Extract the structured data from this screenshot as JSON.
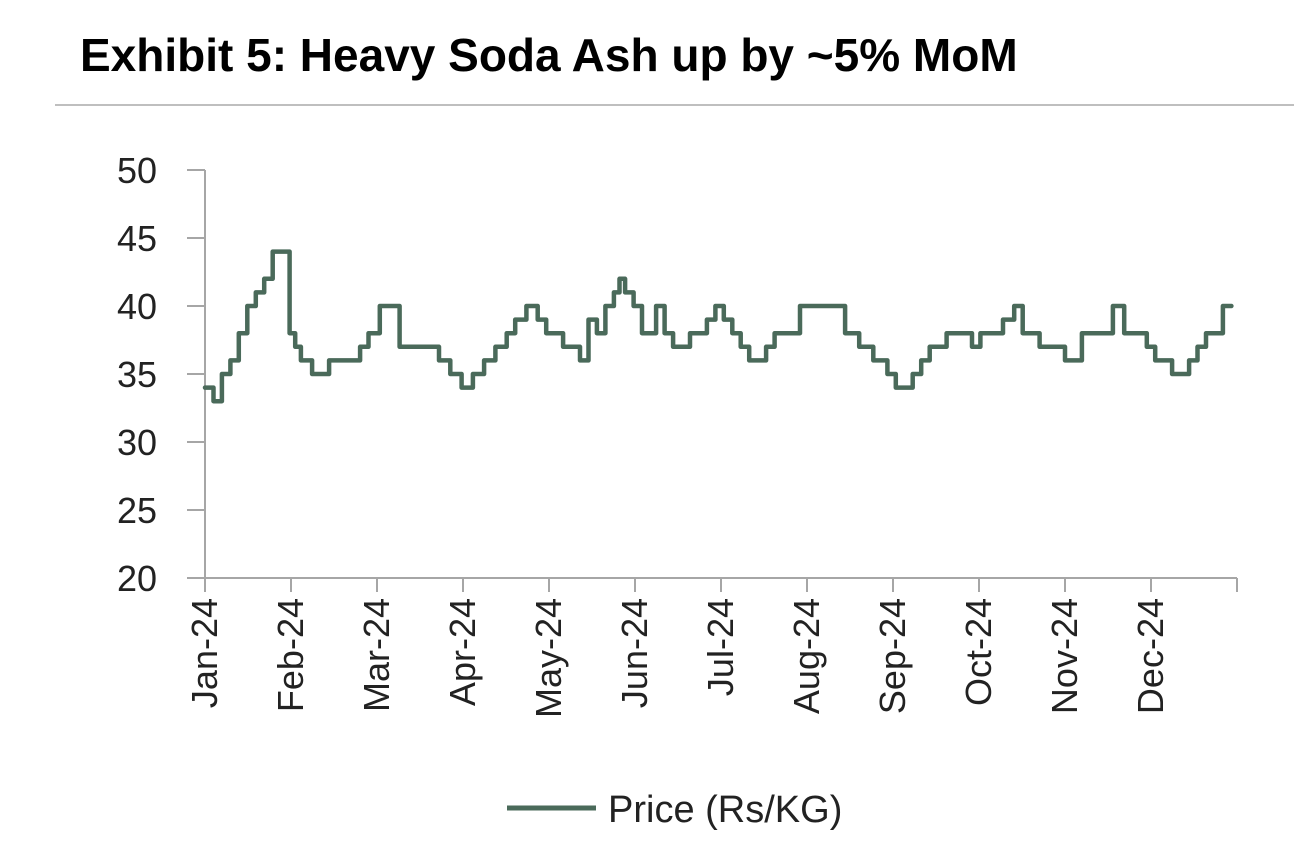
{
  "title": "Exhibit 5: Heavy Soda Ash up by ~5% MoM",
  "chart_data": {
    "type": "line",
    "title": "Exhibit 5: Heavy Soda Ash up by ~5% MoM",
    "xlabel": "",
    "ylabel": "",
    "ylim": [
      20,
      50
    ],
    "y_ticks": [
      "20",
      "25",
      "30",
      "35",
      "40",
      "45",
      "50"
    ],
    "x_ticks": [
      "Jan-24",
      "Feb-24",
      "Mar-24",
      "Apr-24",
      "May-24",
      "Jun-24",
      "Jul-24",
      "Aug-24",
      "Sep-24",
      "Oct-24",
      "Nov-24",
      "Dec-24"
    ],
    "grid": false,
    "legend_position": "bottom",
    "color": "#4a6a5a",
    "series": [
      {
        "name": "Price (Rs/KG)",
        "x": [
          "2024-01-01",
          "2024-01-04",
          "2024-01-07",
          "2024-01-10",
          "2024-01-13",
          "2024-01-16",
          "2024-01-19",
          "2024-01-22",
          "2024-01-25",
          "2024-01-28",
          "2024-01-31",
          "2024-02-02",
          "2024-02-04",
          "2024-02-06",
          "2024-02-08",
          "2024-02-11",
          "2024-02-14",
          "2024-02-17",
          "2024-02-20",
          "2024-02-25",
          "2024-02-28",
          "2024-03-03",
          "2024-03-07",
          "2024-03-10",
          "2024-03-13",
          "2024-03-17",
          "2024-03-20",
          "2024-03-24",
          "2024-03-28",
          "2024-04-01",
          "2024-04-05",
          "2024-04-09",
          "2024-04-13",
          "2024-04-17",
          "2024-04-20",
          "2024-04-24",
          "2024-04-28",
          "2024-05-01",
          "2024-05-04",
          "2024-05-07",
          "2024-05-10",
          "2024-05-13",
          "2024-05-16",
          "2024-05-19",
          "2024-05-22",
          "2024-05-25",
          "2024-05-27",
          "2024-05-29",
          "2024-06-01",
          "2024-06-04",
          "2024-06-07",
          "2024-06-09",
          "2024-06-12",
          "2024-06-15",
          "2024-06-18",
          "2024-06-21",
          "2024-06-24",
          "2024-06-27",
          "2024-06-30",
          "2024-07-03",
          "2024-07-06",
          "2024-07-09",
          "2024-07-12",
          "2024-07-15",
          "2024-07-18",
          "2024-07-21",
          "2024-07-24",
          "2024-07-27",
          "2024-07-30",
          "2024-08-03",
          "2024-08-07",
          "2024-08-11",
          "2024-08-15",
          "2024-08-20",
          "2024-08-25",
          "2024-08-30",
          "2024-09-02",
          "2024-09-05",
          "2024-09-08",
          "2024-09-11",
          "2024-09-14",
          "2024-09-17",
          "2024-09-20",
          "2024-09-23",
          "2024-09-26",
          "2024-09-29",
          "2024-10-02",
          "2024-10-06",
          "2024-10-10",
          "2024-10-14",
          "2024-10-17",
          "2024-10-20",
          "2024-10-23",
          "2024-10-26",
          "2024-10-29",
          "2024-11-01",
          "2024-11-04",
          "2024-11-07",
          "2024-11-10",
          "2024-11-14",
          "2024-11-18",
          "2024-11-22",
          "2024-11-26",
          "2024-11-30",
          "2024-12-03",
          "2024-12-06",
          "2024-12-09",
          "2024-12-12",
          "2024-12-15",
          "2024-12-18",
          "2024-12-21",
          "2024-12-24",
          "2024-12-27",
          "2024-12-30"
        ],
        "values": [
          34,
          33,
          35,
          36,
          38,
          40,
          41,
          42,
          44,
          44,
          38,
          37,
          36,
          36,
          35,
          35,
          36,
          36,
          36,
          37,
          38,
          40,
          40,
          37,
          37,
          37,
          37,
          36,
          35,
          34,
          35,
          36,
          37,
          38,
          39,
          40,
          39,
          38,
          38,
          37,
          37,
          36,
          39,
          38,
          40,
          41,
          42,
          41,
          40,
          38,
          38,
          40,
          38,
          37,
          37,
          38,
          38,
          39,
          40,
          39,
          38,
          37,
          36,
          36,
          37,
          38,
          38,
          38,
          40,
          40,
          40,
          40,
          38,
          37,
          36,
          35,
          34,
          34,
          35,
          36,
          37,
          37,
          38,
          38,
          38,
          37,
          38,
          38,
          39,
          40,
          38,
          38,
          37,
          37,
          37,
          36,
          36,
          38,
          38,
          38,
          40,
          38,
          38,
          37,
          36,
          36,
          35,
          35,
          36,
          37,
          38,
          38,
          40,
          40
        ]
      }
    ]
  }
}
